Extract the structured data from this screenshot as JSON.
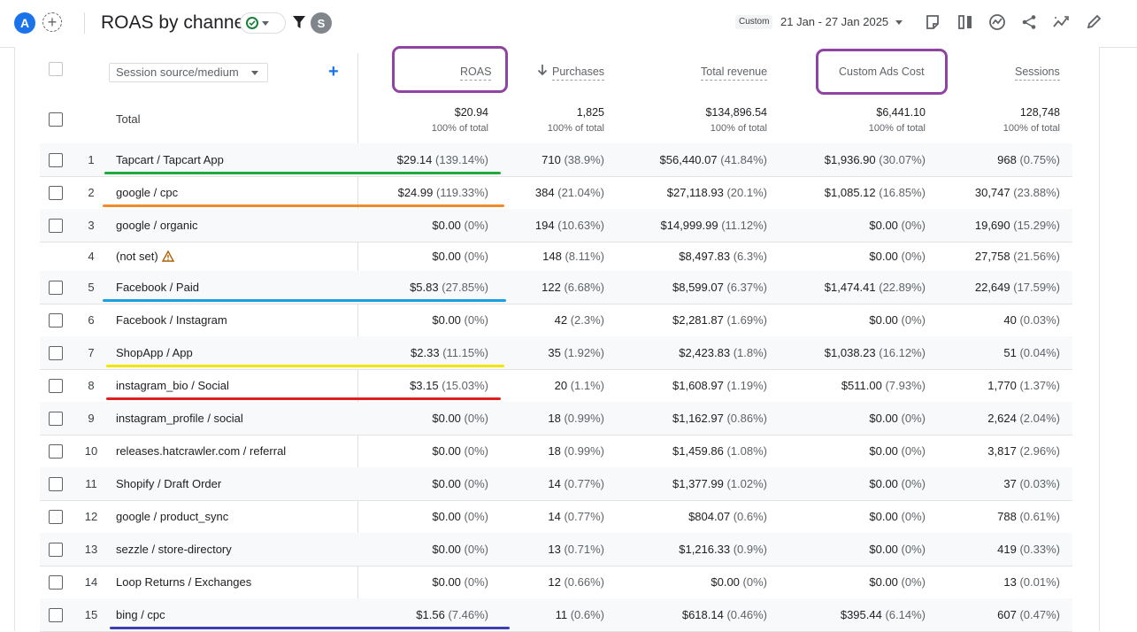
{
  "header": {
    "avatar_letter": "A",
    "title": "ROAS by channel",
    "segment_badge": "S",
    "custom_chip": "Custom",
    "date_range": "21 Jan - 27 Jan 2025"
  },
  "table": {
    "dimension_select": "Session source/medium",
    "add_dimension": "+",
    "columns": [
      "ROAS",
      "Purchases",
      "Total revenue",
      "Custom Ads Cost",
      "Sessions"
    ],
    "sorted_column": "Purchases",
    "total_label": "Total",
    "totals": [
      "$20.94",
      "1,825",
      "$134,896.54",
      "$6,441.10",
      "128,748"
    ],
    "totals_sub": "100% of total",
    "rows": [
      {
        "idx": "1",
        "name": "Tapcart / Tapcart App",
        "roas": "$29.14",
        "roas_p": "(139.14%)",
        "pur": "710",
        "pur_p": "(38.9%)",
        "rev": "$56,440.07",
        "rev_p": "(41.84%)",
        "cost": "$1,936.90",
        "cost_p": "(30.07%)",
        "ses": "968",
        "ses_p": "(0.75%)"
      },
      {
        "idx": "2",
        "name": "google / cpc",
        "roas": "$24.99",
        "roas_p": "(119.33%)",
        "pur": "384",
        "pur_p": "(21.04%)",
        "rev": "$27,118.93",
        "rev_p": "(20.1%)",
        "cost": "$1,085.12",
        "cost_p": "(16.85%)",
        "ses": "30,747",
        "ses_p": "(23.88%)"
      },
      {
        "idx": "3",
        "name": "google / organic",
        "roas": "$0.00",
        "roas_p": "(0%)",
        "pur": "194",
        "pur_p": "(10.63%)",
        "rev": "$14,999.99",
        "rev_p": "(11.12%)",
        "cost": "$0.00",
        "cost_p": "(0%)",
        "ses": "19,690",
        "ses_p": "(15.29%)"
      },
      {
        "idx": "4",
        "name": "(not set)",
        "roas": "$0.00",
        "roas_p": "(0%)",
        "pur": "148",
        "pur_p": "(8.11%)",
        "rev": "$8,497.83",
        "rev_p": "(6.3%)",
        "cost": "$0.00",
        "cost_p": "(0%)",
        "ses": "27,758",
        "ses_p": "(21.56%)"
      },
      {
        "idx": "5",
        "name": "Facebook / Paid",
        "roas": "$5.83",
        "roas_p": "(27.85%)",
        "pur": "122",
        "pur_p": "(6.68%)",
        "rev": "$8,599.07",
        "rev_p": "(6.37%)",
        "cost": "$1,474.41",
        "cost_p": "(22.89%)",
        "ses": "22,649",
        "ses_p": "(17.59%)"
      },
      {
        "idx": "6",
        "name": "Facebook / Instagram",
        "roas": "$0.00",
        "roas_p": "(0%)",
        "pur": "42",
        "pur_p": "(2.3%)",
        "rev": "$2,281.87",
        "rev_p": "(1.69%)",
        "cost": "$0.00",
        "cost_p": "(0%)",
        "ses": "40",
        "ses_p": "(0.03%)"
      },
      {
        "idx": "7",
        "name": "ShopApp / App",
        "roas": "$2.33",
        "roas_p": "(11.15%)",
        "pur": "35",
        "pur_p": "(1.92%)",
        "rev": "$2,423.83",
        "rev_p": "(1.8%)",
        "cost": "$1,038.23",
        "cost_p": "(16.12%)",
        "ses": "51",
        "ses_p": "(0.04%)"
      },
      {
        "idx": "8",
        "name": "instagram_bio / Social",
        "roas": "$3.15",
        "roas_p": "(15.03%)",
        "pur": "20",
        "pur_p": "(1.1%)",
        "rev": "$1,608.97",
        "rev_p": "(1.19%)",
        "cost": "$511.00",
        "cost_p": "(7.93%)",
        "ses": "1,770",
        "ses_p": "(1.37%)"
      },
      {
        "idx": "9",
        "name": "instagram_profile / social",
        "roas": "$0.00",
        "roas_p": "(0%)",
        "pur": "18",
        "pur_p": "(0.99%)",
        "rev": "$1,162.97",
        "rev_p": "(0.86%)",
        "cost": "$0.00",
        "cost_p": "(0%)",
        "ses": "2,624",
        "ses_p": "(2.04%)"
      },
      {
        "idx": "10",
        "name": "releases.hatcrawler.com / referral",
        "roas": "$0.00",
        "roas_p": "(0%)",
        "pur": "18",
        "pur_p": "(0.99%)",
        "rev": "$1,459.86",
        "rev_p": "(1.08%)",
        "cost": "$0.00",
        "cost_p": "(0%)",
        "ses": "3,817",
        "ses_p": "(2.96%)"
      },
      {
        "idx": "11",
        "name": "Shopify / Draft Order",
        "roas": "$0.00",
        "roas_p": "(0%)",
        "pur": "14",
        "pur_p": "(0.77%)",
        "rev": "$1,377.99",
        "rev_p": "(1.02%)",
        "cost": "$0.00",
        "cost_p": "(0%)",
        "ses": "37",
        "ses_p": "(0.03%)"
      },
      {
        "idx": "12",
        "name": "google / product_sync",
        "roas": "$0.00",
        "roas_p": "(0%)",
        "pur": "14",
        "pur_p": "(0.77%)",
        "rev": "$804.07",
        "rev_p": "(0.6%)",
        "cost": "$0.00",
        "cost_p": "(0%)",
        "ses": "788",
        "ses_p": "(0.61%)"
      },
      {
        "idx": "13",
        "name": "sezzle / store-directory",
        "roas": "$0.00",
        "roas_p": "(0%)",
        "pur": "13",
        "pur_p": "(0.71%)",
        "rev": "$1,216.33",
        "rev_p": "(0.9%)",
        "cost": "$0.00",
        "cost_p": "(0%)",
        "ses": "419",
        "ses_p": "(0.33%)"
      },
      {
        "idx": "14",
        "name": "Loop Returns / Exchanges",
        "roas": "$0.00",
        "roas_p": "(0%)",
        "pur": "12",
        "pur_p": "(0.66%)",
        "rev": "$0.00",
        "rev_p": "(0%)",
        "cost": "$0.00",
        "cost_p": "(0%)",
        "ses": "13",
        "ses_p": "(0.01%)"
      },
      {
        "idx": "15",
        "name": "bing / cpc",
        "roas": "$1.56",
        "roas_p": "(7.46%)",
        "pur": "11",
        "pur_p": "(0.6%)",
        "rev": "$618.14",
        "rev_p": "(0.46%)",
        "cost": "$395.44",
        "cost_p": "(6.14%)",
        "ses": "607",
        "ses_p": "(0.47%)"
      }
    ]
  },
  "annotation_colors": {
    "highlight_box": "#8e44a0",
    "underlines": [
      "#1eaa3c",
      "#f08a2c",
      "",
      "",
      "#1aa0e0",
      "",
      "#f2e600",
      "#e02020",
      "",
      "",
      "",
      "",
      "",
      "",
      "#3b3fb0"
    ]
  },
  "icons": [
    "filter-icon",
    "compare-icon",
    "insights-icon",
    "share-icon",
    "trend-icon",
    "edit-icon",
    "warning-icon"
  ]
}
